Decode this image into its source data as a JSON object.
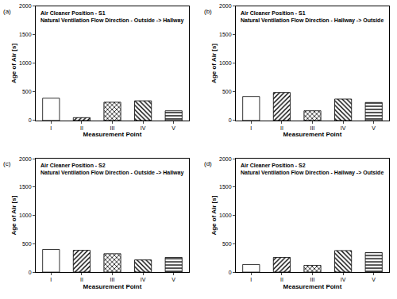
{
  "chart_data": [
    {
      "type": "bar",
      "title": "Air Cleaner Position - S1",
      "subtitle": "Natural Ventilation Flow Direction - Outside -> Hallway",
      "annotations": [
        "(a)"
      ],
      "x_label": "Measurement Point",
      "y_label": "Age of Air [s]",
      "categories": [
        "I",
        "II",
        "III",
        "IV",
        "V"
      ],
      "values": [
        390,
        50,
        320,
        345,
        170
      ],
      "color": "#ffffff",
      "ylim": [
        0,
        2000
      ],
      "yticks": [
        0,
        500,
        1000,
        1500,
        2000
      ],
      "grid": false
    },
    {
      "type": "bar",
      "title": "Air Cleaner Position - S1",
      "subtitle": "Natural Ventilation Flow Direction - Hallway -> Outside",
      "annotations": [
        "(b)"
      ],
      "x_label": "Measurement Point",
      "y_label": "Age of Air [s]",
      "categories": [
        "I",
        "II",
        "III",
        "IV",
        "V"
      ],
      "values": [
        420,
        490,
        170,
        375,
        315
      ],
      "color": "#ffffff",
      "ylim": [
        0,
        2000
      ],
      "yticks": [
        0,
        500,
        1000,
        1500,
        2000
      ],
      "grid": false
    },
    {
      "type": "bar",
      "title": "Air Cleaner Position - S2",
      "subtitle": "Natural Ventilation Flow Direction - Outside -> Hallway",
      "annotations": [
        "(c)"
      ],
      "x_label": "Measurement Point",
      "y_label": "Age of Air [s]",
      "categories": [
        "I",
        "II",
        "III",
        "IV",
        "V"
      ],
      "values": [
        400,
        385,
        325,
        215,
        260
      ],
      "color": "#ffffff",
      "ylim": [
        0,
        2000
      ],
      "yticks": [
        0,
        500,
        1000,
        1500,
        2000
      ],
      "grid": false
    },
    {
      "type": "bar",
      "title": "Air Cleaner Position - S2",
      "subtitle": "Natural Ventilation Flow Direction - Hallway -> Outside",
      "annotations": [
        "(d)"
      ],
      "x_label": "Measurement Point",
      "y_label": "Age of Air [s]",
      "categories": [
        "I",
        "II",
        "III",
        "IV",
        "V"
      ],
      "values": [
        135,
        260,
        120,
        380,
        345
      ],
      "color": "#ffffff",
      "ylim": [
        0,
        2000
      ],
      "yticks": [
        0,
        500,
        1000,
        1500,
        2000
      ],
      "grid": false
    }
  ]
}
